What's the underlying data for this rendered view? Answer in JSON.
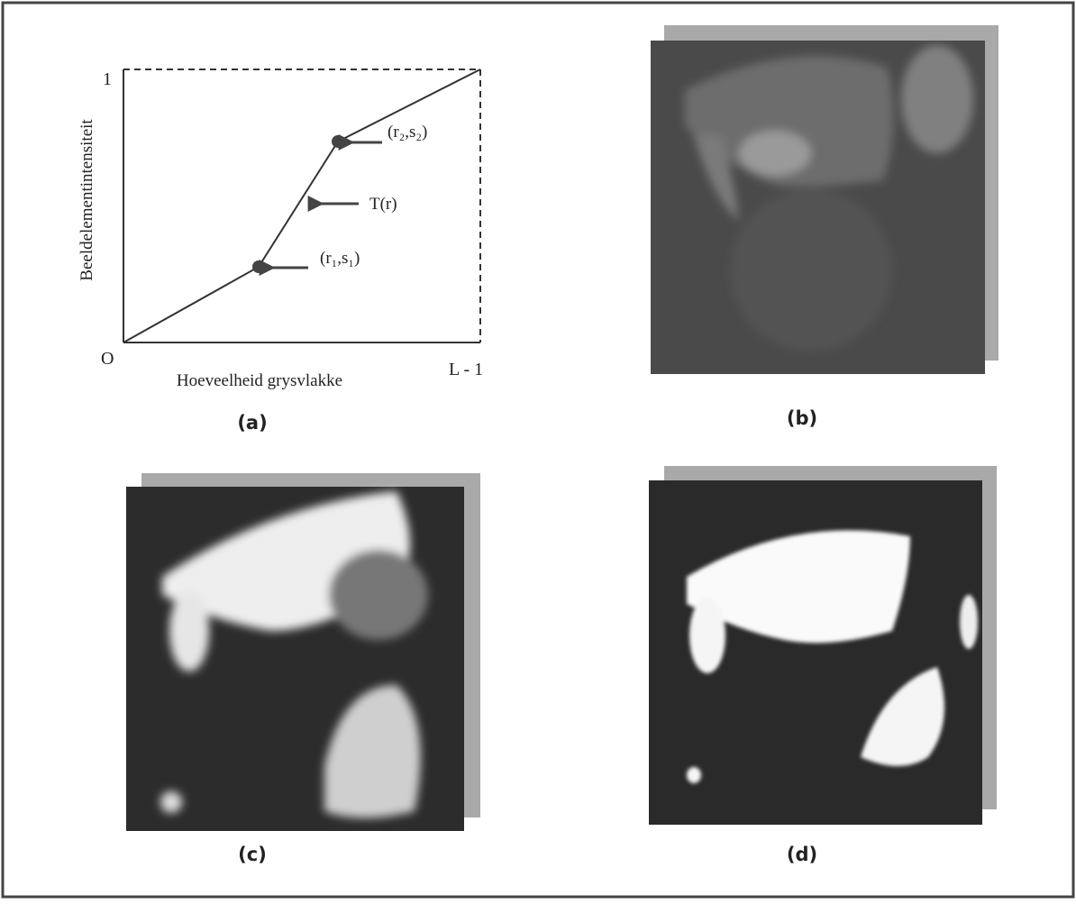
{
  "diagram": {
    "y_axis_label": "Beeldelementintensiteit",
    "x_axis_label": "Hoeveelheid grysvlakke",
    "origin_label": "O",
    "y_max_label": "1",
    "x_max_label": "L - 1",
    "point_1_label": "(r₁,s₁)",
    "point_2_label": "(r₂,s₂)",
    "curve_label": "T(r)"
  },
  "panels": {
    "a": "(a)",
    "b": "(b)",
    "c": "(c)",
    "d": "(d)"
  }
}
